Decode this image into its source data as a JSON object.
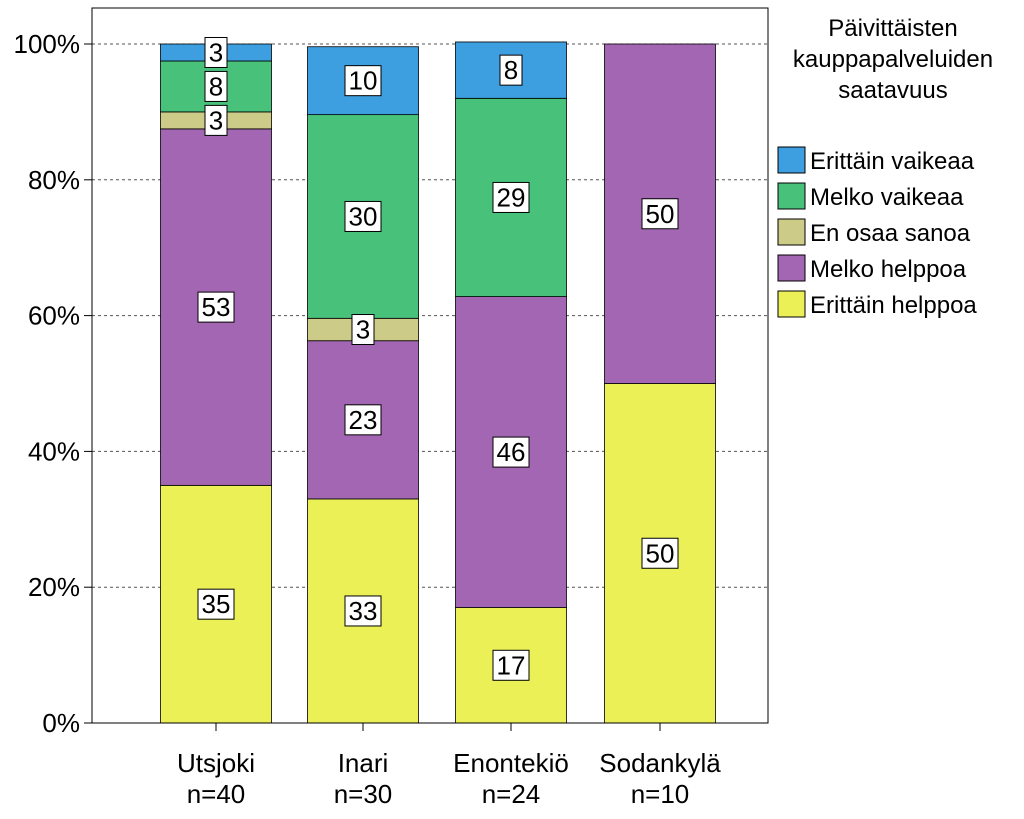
{
  "chart_data": {
    "type": "bar",
    "stacked": true,
    "normalized": true,
    "categories": [
      "Utsjoki",
      "Inari",
      "Enontekiö",
      "Sodankylä"
    ],
    "category_counts": [
      "n=40",
      "n=30",
      "n=24",
      "n=10"
    ],
    "y_ticks": [
      "0%",
      "20%",
      "40%",
      "60%",
      "80%",
      "100%"
    ],
    "ylim": [
      0,
      100
    ],
    "grid": "horizontal dashed",
    "legend_title": [
      "Päivittäisten",
      "kauppapalveluiden",
      "saatavuus"
    ],
    "legend_position": "right",
    "series": [
      {
        "name": "Erittäin helppoa",
        "color": "#ebf057",
        "values": [
          35,
          33,
          17,
          50
        ],
        "labels": [
          "35",
          "33",
          "17",
          "50"
        ]
      },
      {
        "name": "Melko helppoa",
        "color": "#a366b3",
        "values": [
          52.5,
          23.3,
          45.8,
          50
        ],
        "labels": [
          "53",
          "23",
          "46",
          "50"
        ]
      },
      {
        "name": "En osaa sanoa",
        "color": "#cccc88",
        "values": [
          2.5,
          3.3,
          0,
          0
        ],
        "labels": [
          "3",
          "3",
          "",
          ""
        ]
      },
      {
        "name": "Melko vaikeaa",
        "color": "#48c17a",
        "values": [
          7.5,
          30,
          29.2,
          0
        ],
        "labels": [
          "8",
          "30",
          "29",
          ""
        ]
      },
      {
        "name": "Erittäin vaikeaa",
        "color": "#3d9ee0",
        "values": [
          2.5,
          10,
          8.3,
          0
        ],
        "labels": [
          "3",
          "10",
          "8",
          ""
        ]
      }
    ]
  }
}
